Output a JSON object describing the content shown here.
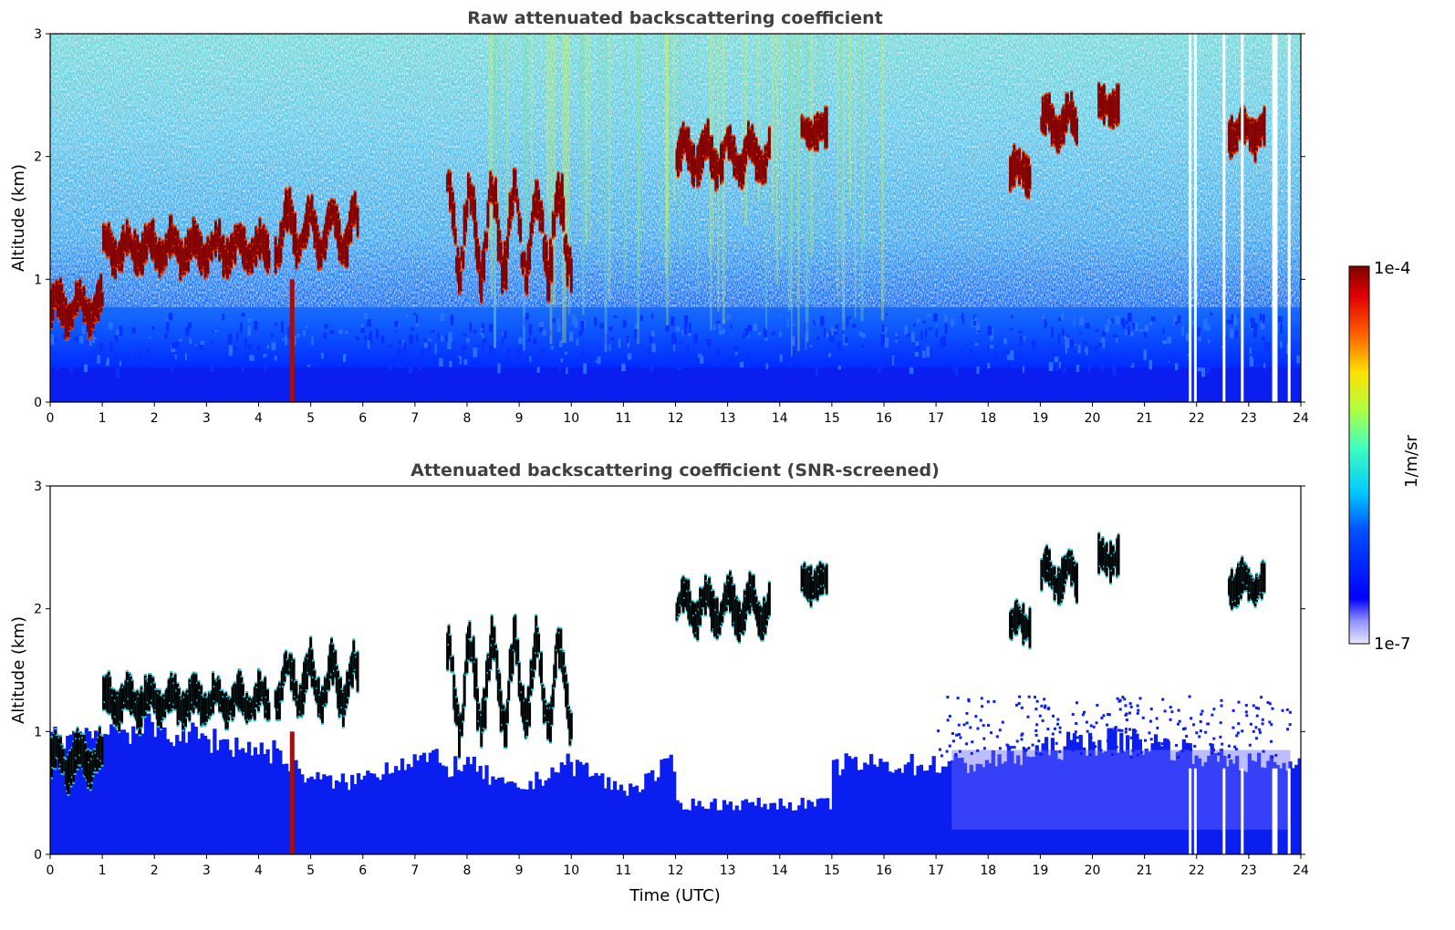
{
  "chart_data": [
    {
      "type": "heatmap",
      "title": "Raw attenuated backscattering coefficient",
      "xlabel": "",
      "ylabel": "Altitude (km)",
      "xlim": [
        0,
        24
      ],
      "ylim": [
        0,
        3
      ],
      "xticks": [
        "0",
        "1",
        "2",
        "3",
        "4",
        "5",
        "6",
        "7",
        "8",
        "9",
        "10",
        "11",
        "12",
        "13",
        "14",
        "15",
        "16",
        "17",
        "18",
        "19",
        "20",
        "21",
        "22",
        "23",
        "24"
      ],
      "yticks": [
        "0",
        "1",
        "2",
        "3"
      ],
      "features": [
        {
          "kind": "cloud",
          "x": [
            0.0,
            1.0
          ],
          "alt": [
            0.6,
            1.0
          ]
        },
        {
          "kind": "cloud",
          "x": [
            1.0,
            4.2
          ],
          "alt": [
            1.1,
            1.45
          ]
        },
        {
          "kind": "cloud",
          "x": [
            4.3,
            5.9
          ],
          "alt": [
            1.1,
            1.8
          ]
        },
        {
          "kind": "cloud",
          "x": [
            7.6,
            10.0
          ],
          "alt": [
            0.8,
            2.2
          ]
        },
        {
          "kind": "cloud",
          "x": [
            12.0,
            13.8
          ],
          "alt": [
            1.8,
            2.3
          ]
        },
        {
          "kind": "cloud",
          "x": [
            14.4,
            14.9
          ],
          "alt": [
            2.15,
            2.3
          ]
        },
        {
          "kind": "cloud",
          "x": [
            18.4,
            18.8
          ],
          "alt": [
            1.8,
            2.0
          ]
        },
        {
          "kind": "cloud",
          "x": [
            19.0,
            19.7
          ],
          "alt": [
            2.1,
            2.5
          ]
        },
        {
          "kind": "cloud",
          "x": [
            20.1,
            20.5
          ],
          "alt": [
            2.35,
            2.5
          ]
        },
        {
          "kind": "cloud",
          "x": [
            22.6,
            23.3
          ],
          "alt": [
            2.1,
            2.35
          ]
        }
      ],
      "data_gaps": [
        21.85,
        21.95,
        22.5,
        22.85,
        23.45,
        23.5,
        23.75
      ]
    },
    {
      "type": "heatmap",
      "title": "Attenuated backscattering coefficient (SNR-screened)",
      "xlabel": "Time (UTC)",
      "ylabel": "Altitude (km)",
      "xlim": [
        0,
        24
      ],
      "ylim": [
        0,
        3
      ],
      "xticks": [
        "0",
        "1",
        "2",
        "3",
        "4",
        "5",
        "6",
        "7",
        "8",
        "9",
        "10",
        "11",
        "12",
        "13",
        "14",
        "15",
        "16",
        "17",
        "18",
        "19",
        "20",
        "21",
        "22",
        "23",
        "24"
      ],
      "yticks": [
        "0",
        "1",
        "2",
        "3"
      ],
      "screened": true
    }
  ],
  "colorbar": {
    "max_label": "1e-4",
    "min_label": "1e-7",
    "unit_label": "1/m/sr",
    "colormap": "jet",
    "scale": "log"
  },
  "colors": {
    "background": "#ffffff",
    "boundary_layer": "#0a1ef0",
    "cloud_core": "#800000",
    "cloud_saturated": "#000000",
    "title": "#404040"
  }
}
